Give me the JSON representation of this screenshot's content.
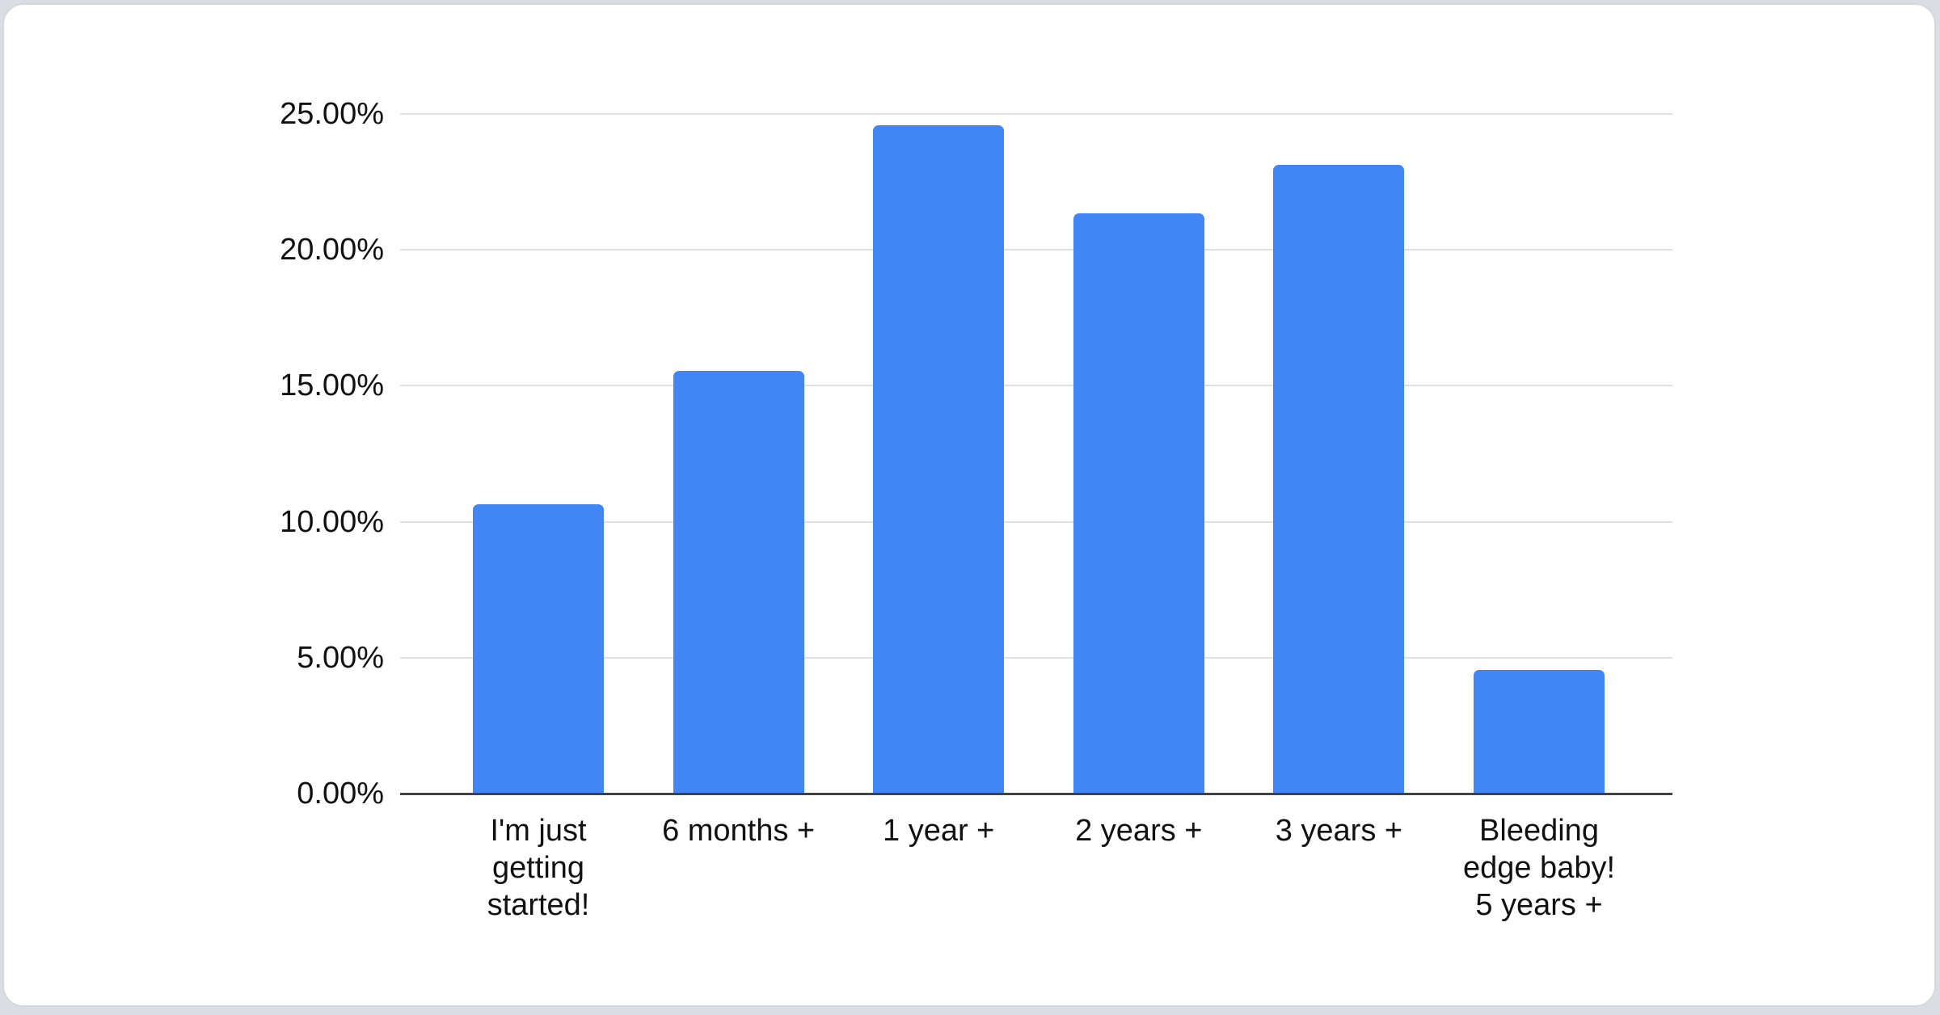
{
  "page": {
    "background_color": "#dadde1",
    "card_background": "#ffffff",
    "card_border_color": "#d5d8db"
  },
  "chart_data": {
    "type": "bar",
    "title": "",
    "xlabel": "",
    "ylabel": "",
    "categories": [
      "I'm just\ngetting\nstarted!",
      "6 months +",
      "1 year +",
      "2 years +",
      "3 years +",
      "Bleeding\nedge baby!\n5 years +"
    ],
    "values": [
      10.64,
      15.55,
      24.58,
      21.34,
      23.13,
      4.55
    ],
    "yticks": [
      {
        "value": 0,
        "label": "0.00%"
      },
      {
        "value": 5,
        "label": "5.00%"
      },
      {
        "value": 10,
        "label": "10.00%"
      },
      {
        "value": 15,
        "label": "15.00%"
      },
      {
        "value": 20,
        "label": "20.00%"
      },
      {
        "value": 25,
        "label": "25.00%"
      }
    ],
    "ylim": [
      0,
      25
    ],
    "grid": true,
    "legend_position": "none",
    "bar_color": "#4285f4",
    "gridline_color": "#e0e0e0",
    "axis_line_color": "#424242",
    "label_color": "#111111"
  }
}
